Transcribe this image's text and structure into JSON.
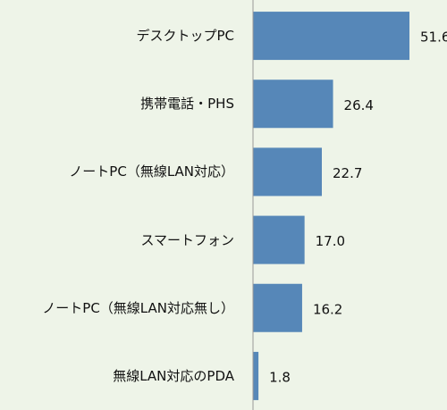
{
  "chart_data": {
    "type": "bar",
    "orientation": "horizontal",
    "categories": [
      "デスクトップPC",
      "携帯電話・PHS",
      "ノートPC（無線LAN対応）",
      "スマートフォン",
      "ノートPC（無線LAN対応無し）",
      "無線LAN対応のPDA"
    ],
    "values": [
      51.6,
      26.4,
      22.7,
      17.0,
      16.2,
      1.8
    ],
    "value_labels": [
      "51.6",
      "26.4",
      "22.7",
      "17.0",
      "16.2",
      "1.8"
    ],
    "color": "#5687b8",
    "xlim": [
      0,
      60
    ]
  }
}
